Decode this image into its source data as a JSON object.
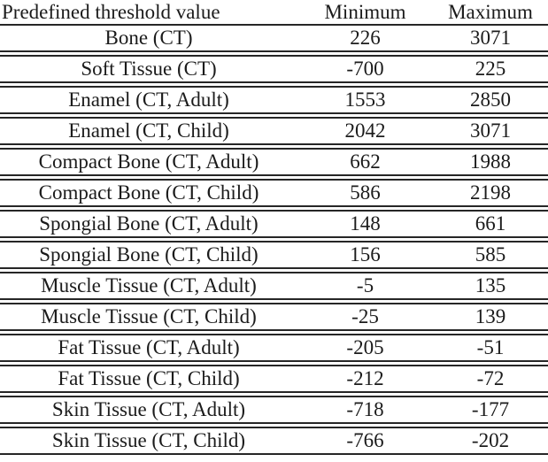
{
  "page": {
    "background": "#ffffff"
  },
  "colors": {
    "text": "#1b1b1b",
    "rule_line": "#262626",
    "background": "#ffffff"
  },
  "table": {
    "header": {
      "col1": "Predefined threshold value",
      "col2": "Minimum",
      "col3": "Maximum"
    },
    "rows": [
      {
        "label": "Bone (CT)",
        "min": "226",
        "max": "3071"
      },
      {
        "label": "Soft Tissue (CT)",
        "min": "-700",
        "max": "225"
      },
      {
        "label": "Enamel (CT, Adult)",
        "min": "1553",
        "max": "2850"
      },
      {
        "label": "Enamel (CT, Child)",
        "min": "2042",
        "max": "3071"
      },
      {
        "label": "Compact Bone (CT, Adult)",
        "min": "662",
        "max": "1988"
      },
      {
        "label": "Compact Bone (CT, Child)",
        "min": "586",
        "max": "2198"
      },
      {
        "label": "Spongial Bone (CT, Adult)",
        "min": "148",
        "max": "661"
      },
      {
        "label": "Spongial Bone (CT, Child)",
        "min": "156",
        "max": "585"
      },
      {
        "label": "Muscle Tissue (CT, Adult)",
        "min": "-5",
        "max": "135"
      },
      {
        "label": "Muscle Tissue (CT, Child)",
        "min": "-25",
        "max": "139"
      },
      {
        "label": "Fat Tissue (CT, Adult)",
        "min": "-205",
        "max": "-51"
      },
      {
        "label": "Fat Tissue (CT, Child)",
        "min": "-212",
        "max": "-72"
      },
      {
        "label": "Skin Tissue (CT, Adult)",
        "min": "-718",
        "max": "-177"
      },
      {
        "label": "Skin Tissue (CT, Child)",
        "min": "-766",
        "max": "-202"
      }
    ]
  },
  "chart_data": {
    "type": "table",
    "columns": [
      "Predefined threshold value",
      "Minimum",
      "Maximum"
    ],
    "rows": [
      [
        "Bone (CT)",
        226,
        3071
      ],
      [
        "Soft Tissue (CT)",
        -700,
        225
      ],
      [
        "Enamel (CT, Adult)",
        1553,
        2850
      ],
      [
        "Enamel (CT, Child)",
        2042,
        3071
      ],
      [
        "Compact Bone (CT, Adult)",
        662,
        1988
      ],
      [
        "Compact Bone (CT, Child)",
        586,
        2198
      ],
      [
        "Spongial Bone (CT, Adult)",
        148,
        661
      ],
      [
        "Spongial Bone (CT, Child)",
        156,
        585
      ],
      [
        "Muscle Tissue (CT, Adult)",
        -5,
        135
      ],
      [
        "Muscle Tissue (CT, Child)",
        -25,
        139
      ],
      [
        "Fat Tissue (CT, Adult)",
        -205,
        -51
      ],
      [
        "Fat Tissue (CT, Child)",
        -212,
        -72
      ],
      [
        "Skin Tissue (CT, Adult)",
        -718,
        -177
      ],
      [
        "Skin Tissue (CT, Child)",
        -766,
        -202
      ]
    ]
  }
}
